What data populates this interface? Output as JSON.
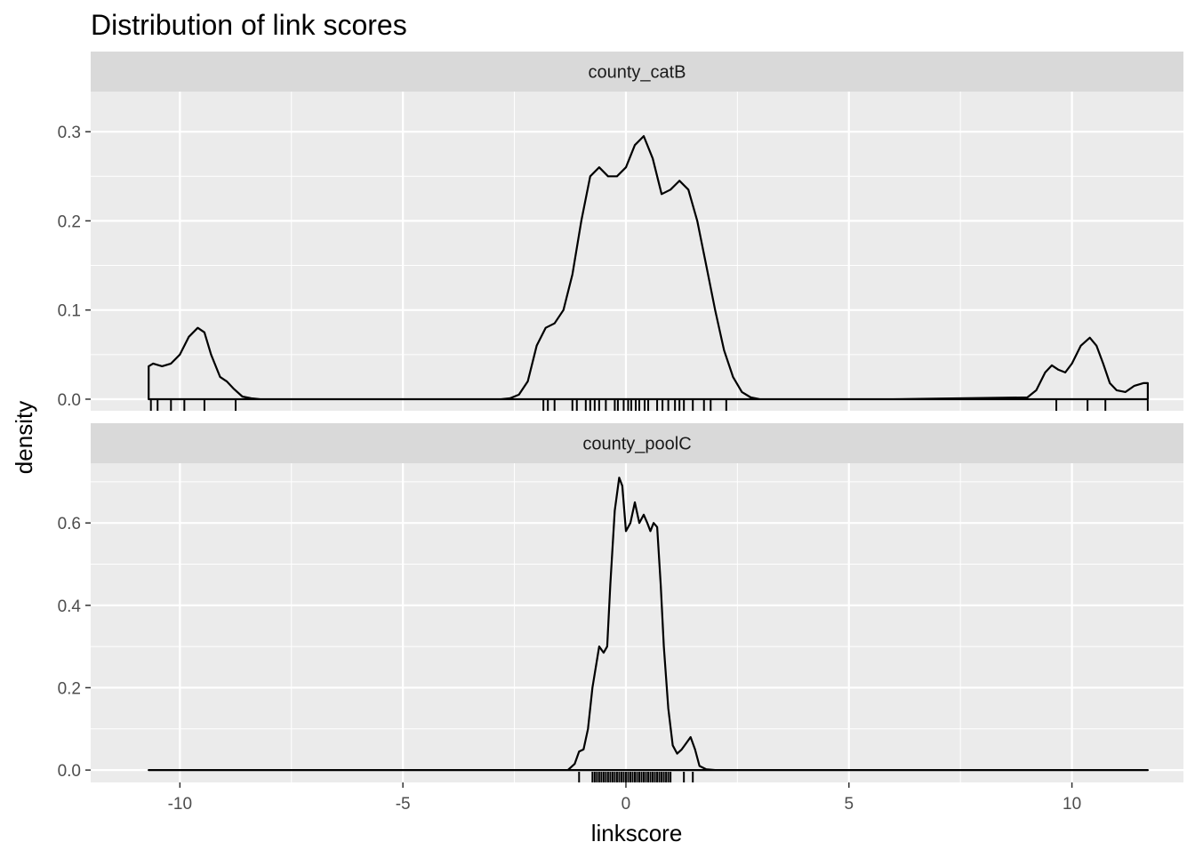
{
  "chart_data": {
    "type": "area",
    "title": "Distribution of link scores",
    "xlabel": "linkscore",
    "ylabel": "density",
    "xlim": [
      -12,
      12.5
    ],
    "x_ticks": [
      -10,
      -5,
      0,
      5,
      10
    ],
    "x_tick_labels": [
      "-10",
      "-5",
      "0",
      "5",
      "10"
    ],
    "grid": true,
    "facets": [
      {
        "name": "county_catB",
        "ylim": [
          -0.013,
          0.345
        ],
        "y_ticks": [
          0.0,
          0.1,
          0.2,
          0.3
        ],
        "y_tick_labels": [
          "0.0",
          "0.1",
          "0.2",
          "0.3"
        ],
        "density_x": [
          -10.7,
          -10.6,
          -10.4,
          -10.2,
          -10.0,
          -9.8,
          -9.6,
          -9.45,
          -9.3,
          -9.1,
          -8.95,
          -8.8,
          -8.6,
          -8.4,
          -8.2,
          -8.0,
          -5.0,
          -2.8,
          -2.6,
          -2.4,
          -2.2,
          -2.0,
          -1.8,
          -1.6,
          -1.4,
          -1.2,
          -1.0,
          -0.8,
          -0.6,
          -0.4,
          -0.2,
          0.0,
          0.2,
          0.4,
          0.6,
          0.8,
          1.0,
          1.2,
          1.4,
          1.6,
          1.8,
          2.0,
          2.2,
          2.4,
          2.6,
          2.8,
          3.0,
          6.0,
          9.0,
          9.2,
          9.4,
          9.55,
          9.7,
          9.85,
          10.0,
          10.2,
          10.4,
          10.55,
          10.7,
          10.85,
          11.0,
          11.2,
          11.4,
          11.6,
          11.7
        ],
        "density_y": [
          0.037,
          0.04,
          0.037,
          0.04,
          0.05,
          0.07,
          0.08,
          0.075,
          0.05,
          0.025,
          0.02,
          0.012,
          0.003,
          0.001,
          0.0,
          0.0,
          0.0,
          0.0,
          0.001,
          0.005,
          0.02,
          0.06,
          0.08,
          0.085,
          0.1,
          0.14,
          0.2,
          0.25,
          0.26,
          0.25,
          0.25,
          0.26,
          0.285,
          0.295,
          0.27,
          0.23,
          0.235,
          0.245,
          0.235,
          0.2,
          0.15,
          0.1,
          0.055,
          0.025,
          0.008,
          0.002,
          0.0,
          0.0,
          0.002,
          0.01,
          0.03,
          0.038,
          0.033,
          0.03,
          0.04,
          0.06,
          0.069,
          0.06,
          0.04,
          0.018,
          0.01,
          0.008,
          0.015,
          0.018,
          0.018
        ],
        "rug": [
          -10.65,
          -10.5,
          -10.2,
          -9.9,
          -9.45,
          -8.75,
          -1.85,
          -1.75,
          -1.6,
          -1.2,
          -1.1,
          -0.9,
          -0.8,
          -0.7,
          -0.6,
          -0.45,
          -0.25,
          -0.18,
          -0.05,
          0.05,
          0.12,
          0.22,
          0.3,
          0.42,
          0.5,
          0.7,
          0.82,
          0.95,
          1.1,
          1.2,
          1.3,
          1.5,
          1.75,
          1.9,
          2.25,
          9.65,
          10.35,
          10.75,
          11.7
        ]
      },
      {
        "name": "county_poolC",
        "ylim": [
          -0.03,
          0.745
        ],
        "y_ticks": [
          0.0,
          0.2,
          0.4,
          0.6
        ],
        "y_tick_labels": [
          "0.0",
          "0.2",
          "0.4",
          "0.6"
        ],
        "density_x": [
          -10.7,
          -5.0,
          -2.0,
          -1.3,
          -1.15,
          -1.05,
          -0.95,
          -0.85,
          -0.75,
          -0.6,
          -0.5,
          -0.42,
          -0.35,
          -0.25,
          -0.15,
          -0.08,
          0.0,
          0.1,
          0.2,
          0.3,
          0.4,
          0.48,
          0.55,
          0.62,
          0.7,
          0.78,
          0.85,
          0.95,
          1.05,
          1.15,
          1.25,
          1.35,
          1.45,
          1.55,
          1.65,
          1.8,
          2.0,
          5.0,
          11.7
        ],
        "density_y": [
          0.0,
          0.0,
          0.0,
          0.0,
          0.015,
          0.045,
          0.05,
          0.1,
          0.2,
          0.3,
          0.285,
          0.3,
          0.45,
          0.63,
          0.71,
          0.69,
          0.58,
          0.6,
          0.65,
          0.6,
          0.62,
          0.6,
          0.58,
          0.6,
          0.59,
          0.45,
          0.3,
          0.15,
          0.06,
          0.04,
          0.05,
          0.065,
          0.08,
          0.05,
          0.01,
          0.002,
          0.0,
          0.0,
          0.0
        ],
        "rug": [
          -1.05,
          -0.75,
          -0.7,
          -0.65,
          -0.6,
          -0.55,
          -0.5,
          -0.45,
          -0.4,
          -0.35,
          -0.3,
          -0.25,
          -0.2,
          -0.15,
          -0.1,
          -0.05,
          0.0,
          0.05,
          0.1,
          0.15,
          0.2,
          0.25,
          0.3,
          0.35,
          0.4,
          0.45,
          0.5,
          0.55,
          0.6,
          0.65,
          0.7,
          0.75,
          0.8,
          0.85,
          0.9,
          0.95,
          1.0,
          1.3,
          1.5
        ]
      }
    ]
  }
}
